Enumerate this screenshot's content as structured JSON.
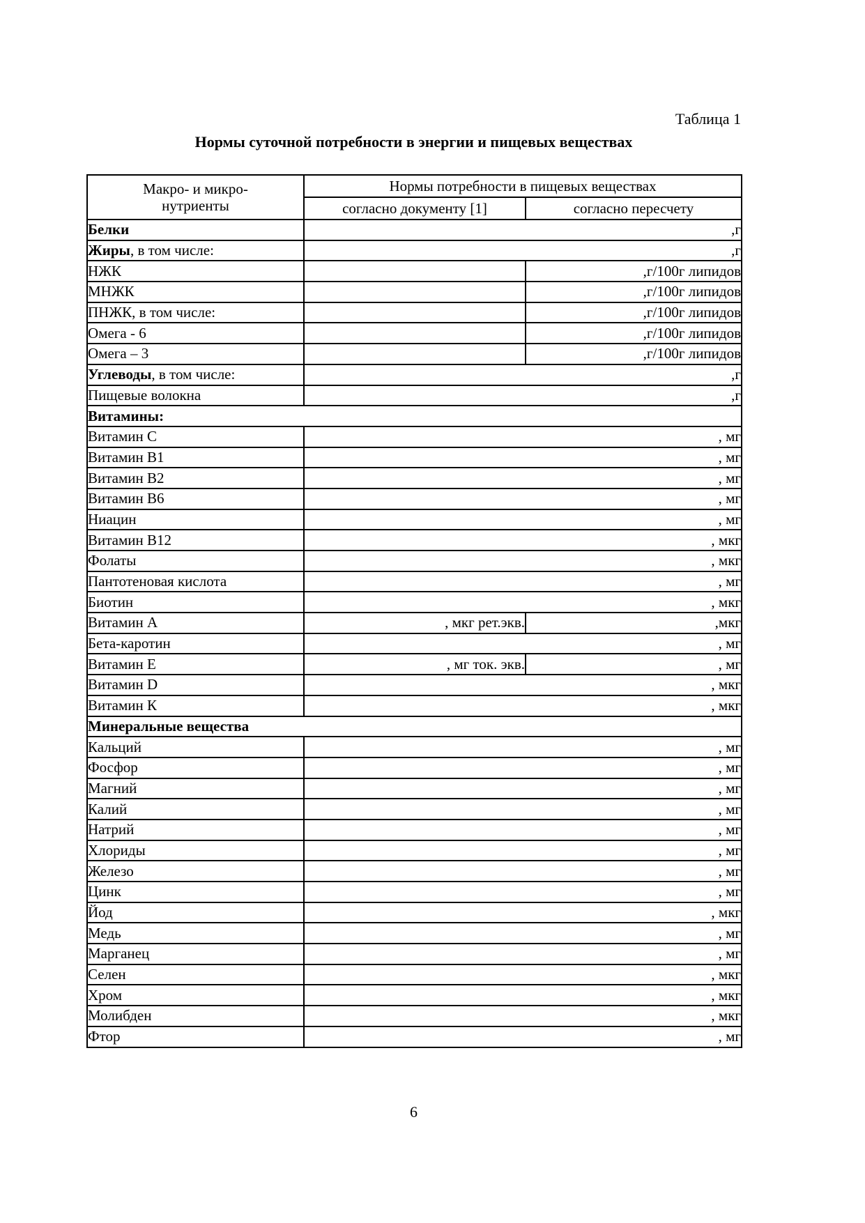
{
  "page": {
    "table_caption": "Таблица 1",
    "title": "Нормы суточной потребности в энергии и пищевых веществах",
    "page_number": "6"
  },
  "colors": {
    "text": "#000000",
    "background": "#ffffff",
    "border": "#000000"
  },
  "table": {
    "header": {
      "col1_line1": "Макро- и микро-",
      "col1_line2": "нутриенты",
      "group": "Нормы потребности в пищевых веществах",
      "sub_doc": "согласно документу [1]",
      "sub_recalc": "согласно пересчету"
    },
    "rows": [
      {
        "type": "span",
        "bold": "Белки",
        "rest": "",
        "unit": ",г"
      },
      {
        "type": "span",
        "bold": "Жиры",
        "rest": ", в том числе:",
        "unit": ",г"
      },
      {
        "type": "two",
        "bold": "",
        "rest": "НЖК",
        "col2": "",
        "col3": ",г/100г липидов"
      },
      {
        "type": "two",
        "bold": "",
        "rest": "МНЖК",
        "col2": "",
        "col3": ",г/100г липидов"
      },
      {
        "type": "two",
        "bold": "",
        "rest": "ПНЖК, в том числе:",
        "col2": "",
        "col3": ",г/100г липидов"
      },
      {
        "type": "two",
        "bold": "",
        "rest": "Омега - 6",
        "col2": "",
        "col3": ",г/100г липидов"
      },
      {
        "type": "two",
        "bold": "",
        "rest": "Омега – 3",
        "col2": "",
        "col3": ",г/100г липидов"
      },
      {
        "type": "span",
        "bold": "Углеводы",
        "rest": ", в том числе:",
        "unit": ",г"
      },
      {
        "type": "span",
        "bold": "",
        "rest": "Пищевые волокна",
        "unit": ",г"
      },
      {
        "type": "section",
        "bold": "Витамины:",
        "rest": ""
      },
      {
        "type": "span",
        "bold": "",
        "rest": "Витамин С",
        "unit": ", мг"
      },
      {
        "type": "span",
        "bold": "",
        "rest": "Витамин В1",
        "unit": ", мг"
      },
      {
        "type": "span",
        "bold": "",
        "rest": "Витамин В2",
        "unit": ", мг"
      },
      {
        "type": "span",
        "bold": "",
        "rest": "Витамин В6",
        "unit": ", мг"
      },
      {
        "type": "span",
        "bold": "",
        "rest": "Ниацин",
        "unit": ", мг"
      },
      {
        "type": "span",
        "bold": "",
        "rest": "Витамин В12",
        "unit": ", мкг"
      },
      {
        "type": "span",
        "bold": "",
        "rest": "Фолаты",
        "unit": ", мкг"
      },
      {
        "type": "span",
        "bold": "",
        "rest": "Пантотеновая кислота",
        "unit": ", мг"
      },
      {
        "type": "span",
        "bold": "",
        "rest": "Биотин",
        "unit": ", мкг"
      },
      {
        "type": "two",
        "bold": "",
        "rest": "Витамин А",
        "col2": ", мкг рет.экв.",
        "col3": ",мкг"
      },
      {
        "type": "span",
        "bold": "",
        "rest": "Бета-каротин",
        "unit": ", мг"
      },
      {
        "type": "two",
        "bold": "",
        "rest": "Витамин Е",
        "col2": ", мг ток. экв.",
        "col3": ", мг"
      },
      {
        "type": "span",
        "bold": "",
        "rest": "Витамин D",
        "unit": ", мкг"
      },
      {
        "type": "span",
        "bold": "",
        "rest": "Витамин К",
        "unit": ", мкг"
      },
      {
        "type": "section",
        "bold": "Минеральные вещества",
        "rest": ""
      },
      {
        "type": "span",
        "bold": "",
        "rest": "Кальций",
        "unit": ", мг"
      },
      {
        "type": "span",
        "bold": "",
        "rest": "Фосфор",
        "unit": ", мг"
      },
      {
        "type": "span",
        "bold": "",
        "rest": "Магний",
        "unit": ", мг"
      },
      {
        "type": "span",
        "bold": "",
        "rest": "Калий",
        "unit": ", мг"
      },
      {
        "type": "span",
        "bold": "",
        "rest": "Натрий",
        "unit": ", мг"
      },
      {
        "type": "span",
        "bold": "",
        "rest": "Хлориды",
        "unit": ", мг"
      },
      {
        "type": "span",
        "bold": "",
        "rest": "Железо",
        "unit": ", мг"
      },
      {
        "type": "span",
        "bold": "",
        "rest": "Цинк",
        "unit": ", мг"
      },
      {
        "type": "span",
        "bold": "",
        "rest": "Йод",
        "unit": ", мкг"
      },
      {
        "type": "span",
        "bold": "",
        "rest": "Медь",
        "unit": ", мг"
      },
      {
        "type": "span",
        "bold": "",
        "rest": "Марганец",
        "unit": ", мг"
      },
      {
        "type": "span",
        "bold": "",
        "rest": "Селен",
        "unit": ", мкг"
      },
      {
        "type": "span",
        "bold": "",
        "rest": "Хром",
        "unit": ", мкг"
      },
      {
        "type": "span",
        "bold": "",
        "rest": "Молибден",
        "unit": ", мкг"
      },
      {
        "type": "span",
        "bold": "",
        "rest": "Фтор",
        "unit": ", мг"
      }
    ]
  }
}
